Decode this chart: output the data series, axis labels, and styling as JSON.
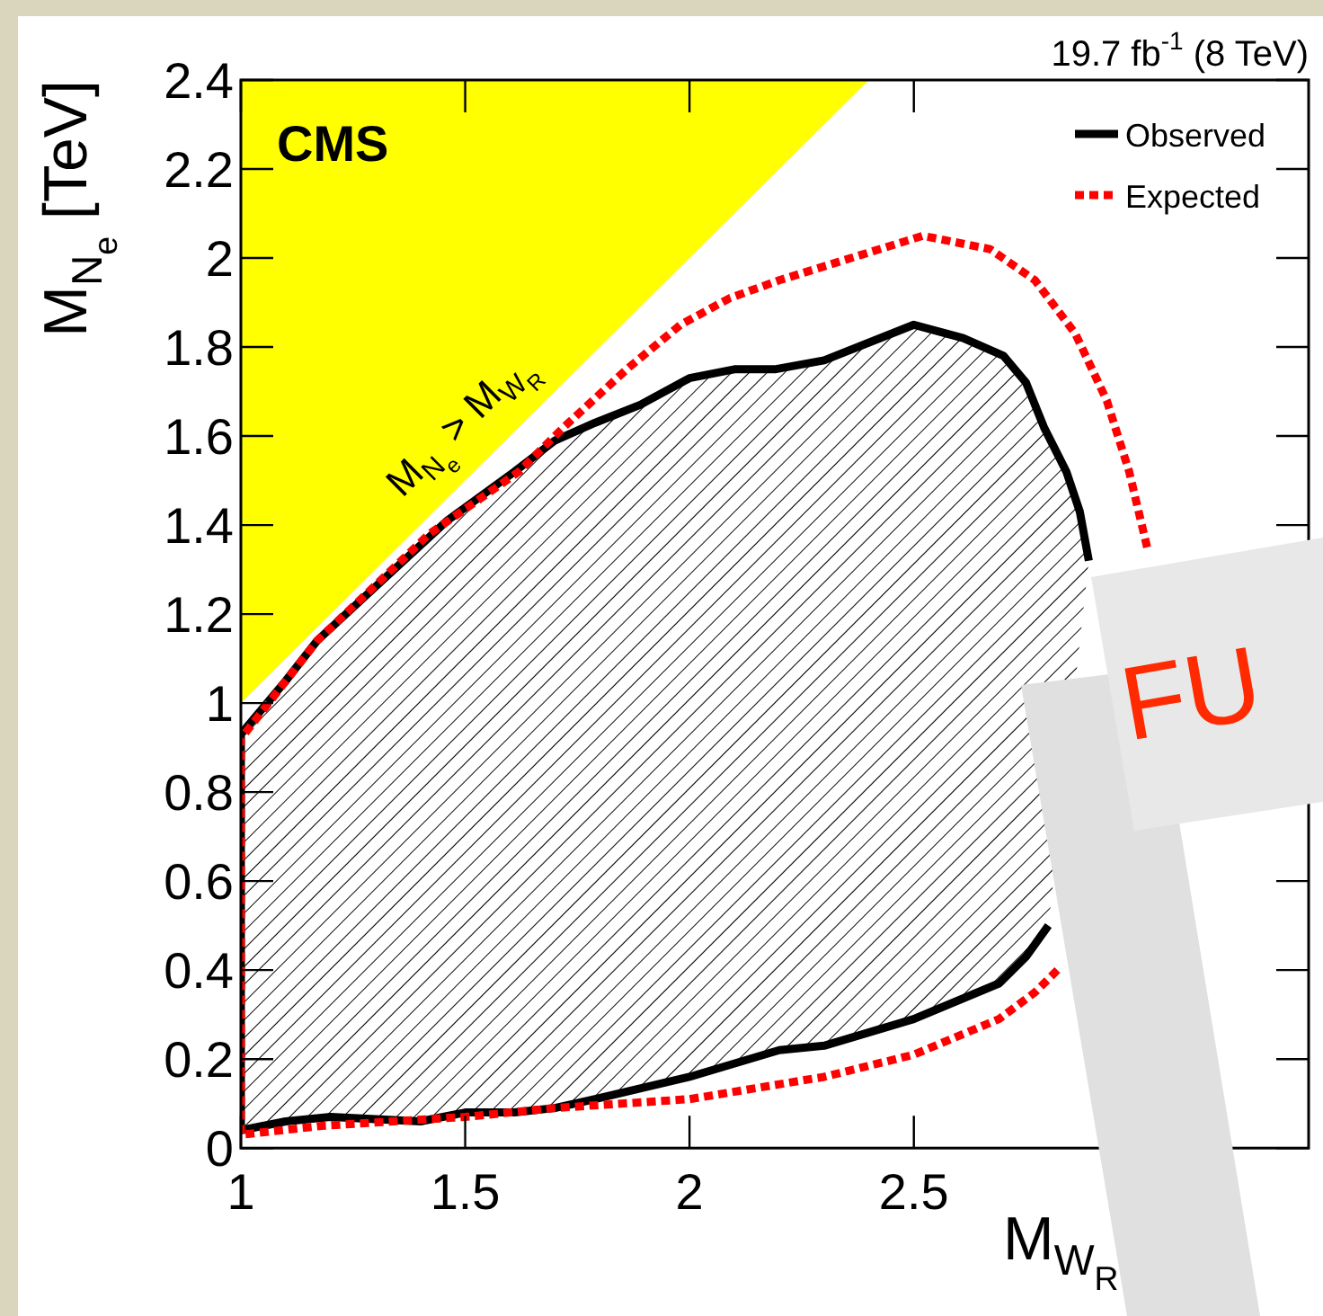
{
  "chart_data": {
    "type": "line",
    "title": "19.7 fb$^{-1}$ (8 TeV)",
    "xlabel": "M$_{W}$$_{R}$",
    "ylabel": "M$_{N}$$_{e}$ [TeV]",
    "annotations": [
      "CMS",
      "M$_{N}$$_{e}$ > M$_{W}$$_{R}$",
      "FU"
    ],
    "xlim": [
      1,
      3.38
    ],
    "xticks": [
      1,
      1.5,
      2,
      2.5
    ],
    "ylim": [
      0,
      2.4
    ],
    "yticks": [
      0,
      0.2,
      0.4,
      0.6,
      0.8,
      1,
      1.2,
      1.4,
      1.6,
      1.8,
      2,
      2.2,
      2.4
    ],
    "legend": "top right",
    "grid": false,
    "series": [
      {
        "type": "area",
        "color": "#ffff00",
        "x": [
          1,
          1,
          2.4
        ],
        "values": [
          1,
          2.4,
          2.4
        ]
      },
      {
        "type": "area",
        "name": "Observed",
        "color": "#000000",
        "line_style": "solid",
        "x": [
          2.8,
          2.75,
          2.69,
          2.5,
          2.3,
          2.2,
          2.0,
          1.79,
          1.7,
          1.61,
          1.5,
          1.4,
          1.2,
          1.1,
          1.0,
          1.0,
          1.1,
          1.17,
          1.32,
          1.46,
          1.61,
          1.7,
          1.79,
          1.89,
          2.0,
          2.1,
          2.19,
          2.3,
          2.5,
          2.61,
          2.7,
          2.75,
          2.79,
          2.84,
          2.87,
          2.89
        ],
        "values": [
          0.5,
          0.43,
          0.37,
          0.29,
          0.23,
          0.22,
          0.16,
          0.11,
          0.09,
          0.08,
          0.08,
          0.06,
          0.07,
          0.06,
          0.04,
          0.93,
          1.05,
          1.14,
          1.28,
          1.41,
          1.52,
          1.59,
          1.63,
          1.67,
          1.73,
          1.75,
          1.75,
          1.77,
          1.85,
          1.82,
          1.78,
          1.72,
          1.62,
          1.52,
          1.43,
          1.32
        ]
      },
      {
        "name": "Expected",
        "color": "#ff0000",
        "line_style": "dotted",
        "x": [
          2.82,
          2.77,
          2.69,
          2.5,
          2.3,
          2.0,
          1.7,
          1.5,
          1.18,
          1.0,
          1.0,
          1.17,
          1.42,
          1.62,
          1.72,
          1.86,
          1.98,
          2.09,
          2.2,
          2.36,
          2.52,
          2.67,
          2.77,
          2.86,
          2.93,
          2.98,
          3.02
        ],
        "values": [
          0.4,
          0.35,
          0.29,
          0.21,
          0.16,
          0.11,
          0.09,
          0.07,
          0.05,
          0.03,
          0.92,
          1.14,
          1.38,
          1.52,
          1.62,
          1.75,
          1.85,
          1.91,
          1.95,
          2.0,
          2.05,
          2.02,
          1.95,
          1.83,
          1.68,
          1.52,
          1.35
        ]
      }
    ]
  }
}
